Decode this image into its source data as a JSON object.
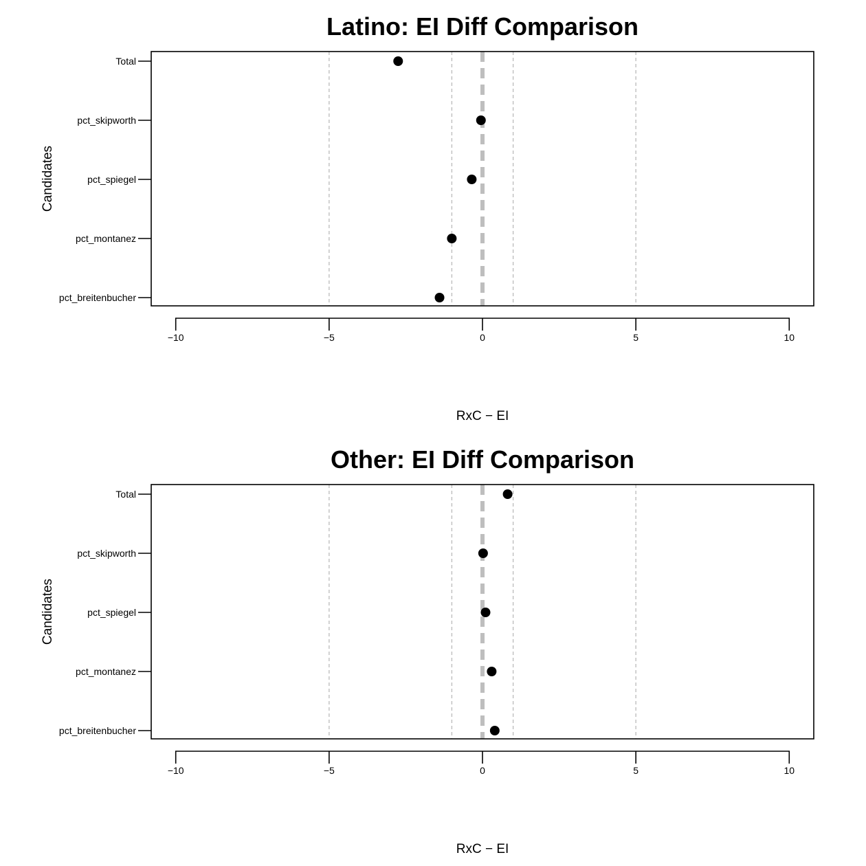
{
  "chart_data": [
    {
      "type": "scatter",
      "title": "Latino: EI Diff Comparison",
      "xlabel": "RxC − EI",
      "ylabel": "Candidates",
      "categories": [
        "Total",
        "pct_skipworth",
        "pct_spiegel",
        "pct_montanez",
        "pct_breitenbucher"
      ],
      "values": [
        -2.75,
        -0.05,
        -0.35,
        -1.0,
        -1.4
      ],
      "xlim": [
        -10.8,
        10.8
      ],
      "xticks": [
        -10,
        -5,
        0,
        5,
        10
      ],
      "xtick_labels": [
        "−10",
        "−5",
        "0",
        "5",
        "10"
      ],
      "reference_lines": {
        "thin_dashed": [
          -5,
          -1,
          1,
          5
        ],
        "thick_dashed": [
          0
        ]
      },
      "grid": false,
      "legend": "none"
    },
    {
      "type": "scatter",
      "title": "Other: EI Diff Comparison",
      "xlabel": "RxC − EI",
      "ylabel": "Candidates",
      "categories": [
        "Total",
        "pct_skipworth",
        "pct_spiegel",
        "pct_montanez",
        "pct_breitenbucher"
      ],
      "values": [
        0.82,
        0.02,
        0.1,
        0.3,
        0.4
      ],
      "xlim": [
        -10.8,
        10.8
      ],
      "xticks": [
        -10,
        -5,
        0,
        5,
        10
      ],
      "xtick_labels": [
        "−10",
        "−5",
        "0",
        "5",
        "10"
      ],
      "reference_lines": {
        "thin_dashed": [
          -5,
          -1,
          1,
          5
        ],
        "thick_dashed": [
          0
        ]
      },
      "grid": false,
      "legend": "none"
    }
  ],
  "colors": {
    "points": "#000000",
    "frame": "#000000",
    "reference_line": "#bebebe"
  }
}
